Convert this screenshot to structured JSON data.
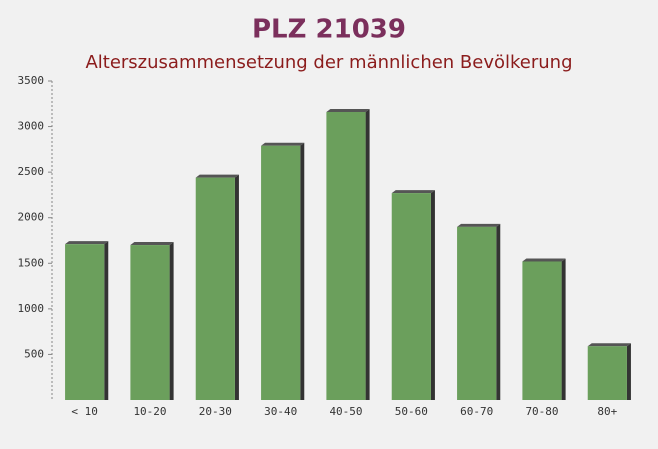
{
  "chart_data": {
    "type": "bar",
    "title": "PLZ 21039",
    "subtitle": "Alterszusammensetzung der männlichen Bevölkerung",
    "categories": [
      "< 10",
      "10-20",
      "20-30",
      "30-40",
      "40-50",
      "50-60",
      "60-70",
      "70-80",
      "80+"
    ],
    "values": [
      1710,
      1700,
      2440,
      2790,
      3160,
      2270,
      1900,
      1520,
      590
    ],
    "color": "#6b9f5c",
    "ylim": [
      0,
      3500
    ],
    "yticks": [
      500,
      1000,
      1500,
      2000,
      2500,
      3000,
      3500
    ],
    "grid": false
  }
}
